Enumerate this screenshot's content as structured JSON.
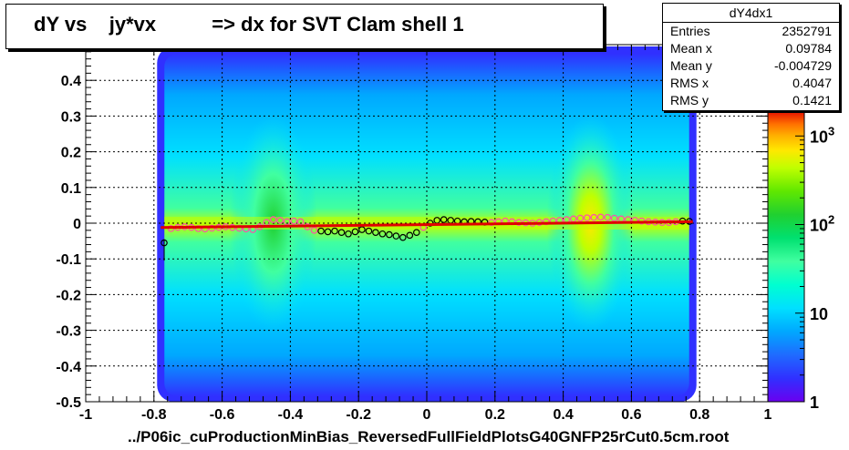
{
  "title": "dY vs    jy*vx          => dx for SVT Clam shell 1",
  "stats": {
    "name": "dY4dx1",
    "rows": [
      {
        "key": "Entries",
        "value": "2352791"
      },
      {
        "key": "Mean x",
        "value": "0.09784"
      },
      {
        "key": "Mean y",
        "value": "-0.004729"
      },
      {
        "key": "RMS x",
        "value": "0.4047"
      },
      {
        "key": "RMS y",
        "value": "0.1421"
      }
    ]
  },
  "footer": "../P06ic_cuProductionMinBias_ReversedFullFieldPlotsG40GNFP25rCut0.5cm.root",
  "colors": {
    "frame": "#000000",
    "fit_line": "#e00000",
    "profile_black": "#000000",
    "profile_pink": "#ff4fa8",
    "palette": [
      "#6a00f0",
      "#3030ff",
      "#1f6bff",
      "#00a8ff",
      "#00e0ff",
      "#00ffd0",
      "#40ffa0",
      "#00e070",
      "#20d030",
      "#60e800",
      "#c0ff00",
      "#ffe800",
      "#ffb000",
      "#ff7000",
      "#ff3000",
      "#e00000"
    ]
  },
  "chart_data": {
    "type": "heatmap",
    "title": "dY vs    jy*vx          => dx for SVT Clam shell 1",
    "xlabel": "",
    "ylabel": "",
    "xlim": [
      -1,
      1
    ],
    "ylim": [
      -0.5,
      0.5
    ],
    "x_ticks": [
      -1,
      -0.8,
      -0.6,
      -0.4,
      -0.2,
      0,
      0.2,
      0.4,
      0.6,
      0.8,
      1
    ],
    "y_ticks": [
      -0.5,
      -0.4,
      -0.3,
      -0.2,
      -0.1,
      0,
      0.1,
      0.2,
      0.3,
      0.4
    ],
    "x_tick_labels": [
      "-1",
      "-0.8",
      "-0.6",
      "-0.4",
      "-0.2",
      "0",
      "0.2",
      "0.4",
      "0.6",
      "0.8",
      "1"
    ],
    "y_tick_labels": [
      "-0.5",
      "-0.4",
      "-0.3",
      "-0.2",
      "-0.1",
      "0",
      "0.1",
      "0.2",
      "0.3",
      "0.4"
    ],
    "grid": true,
    "z_scale": "log",
    "z_range": [
      1,
      2000
    ],
    "z_tick_values": [
      1,
      10,
      100,
      1000
    ],
    "z_tick_labels": [
      "1",
      "10",
      "10^2",
      "10^3"
    ],
    "data_region": {
      "x": [
        -0.78,
        0.78
      ],
      "y": [
        -0.5,
        0.5
      ]
    },
    "density_bands_x": [
      -0.45,
      0.48
    ],
    "profile": {
      "name": "profile",
      "x": [
        -0.77,
        -0.75,
        -0.73,
        -0.71,
        -0.69,
        -0.67,
        -0.65,
        -0.63,
        -0.61,
        -0.59,
        -0.57,
        -0.55,
        -0.53,
        -0.51,
        -0.49,
        -0.47,
        -0.45,
        -0.43,
        -0.41,
        -0.39,
        -0.37,
        -0.35,
        -0.33,
        -0.31,
        -0.29,
        -0.27,
        -0.25,
        -0.23,
        -0.21,
        -0.19,
        -0.17,
        -0.15,
        -0.13,
        -0.11,
        -0.09,
        -0.07,
        -0.05,
        -0.03,
        -0.01,
        0.01,
        0.03,
        0.05,
        0.07,
        0.09,
        0.11,
        0.13,
        0.15,
        0.17,
        0.19,
        0.21,
        0.23,
        0.25,
        0.27,
        0.29,
        0.31,
        0.33,
        0.35,
        0.37,
        0.39,
        0.41,
        0.43,
        0.45,
        0.47,
        0.49,
        0.51,
        0.53,
        0.55,
        0.57,
        0.59,
        0.61,
        0.63,
        0.65,
        0.67,
        0.69,
        0.71,
        0.73,
        0.75,
        0.77
      ],
      "y": [
        -0.055,
        -0.015,
        -0.012,
        -0.01,
        -0.012,
        -0.015,
        -0.016,
        -0.014,
        -0.012,
        -0.01,
        -0.012,
        -0.014,
        -0.016,
        -0.018,
        -0.01,
        0.002,
        0.01,
        0.008,
        0.004,
        0.006,
        0.004,
        -0.01,
        -0.02,
        -0.022,
        -0.024,
        -0.022,
        -0.026,
        -0.03,
        -0.024,
        -0.018,
        -0.022,
        -0.026,
        -0.03,
        -0.032,
        -0.036,
        -0.04,
        -0.034,
        -0.026,
        -0.012,
        0.0,
        0.008,
        0.01,
        0.008,
        0.006,
        0.004,
        0.005,
        0.004,
        0.003,
        0.002,
        0.004,
        0.006,
        0.004,
        0.002,
        0.001,
        0.0,
        0.002,
        0.004,
        0.006,
        0.008,
        0.01,
        0.012,
        0.014,
        0.015,
        0.016,
        0.017,
        0.016,
        0.014,
        0.012,
        0.01,
        0.008,
        0.006,
        0.004,
        0.003,
        0.002,
        0.002,
        0.004,
        0.006,
        0.005
      ]
    },
    "fit": {
      "x": [
        -0.78,
        0.78
      ],
      "y": [
        -0.012,
        0.004
      ]
    }
  }
}
